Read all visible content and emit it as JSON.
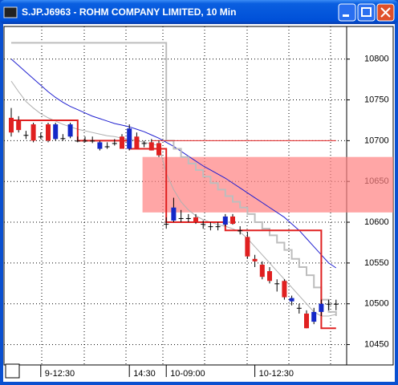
{
  "window_title": "S.JP.J6963 - ROHM COMPANY LIMITED, 10 Min",
  "chart_data": {
    "type": "candlestick",
    "categories": [
      null,
      null,
      null,
      null,
      "9-12:30",
      null,
      null,
      null,
      null,
      null,
      null,
      null,
      null,
      null,
      null,
      null,
      "14:30",
      null,
      null,
      null,
      null,
      "10-09:00",
      null,
      null,
      null,
      null,
      null,
      null,
      null,
      null,
      null,
      null,
      null,
      "10-12:30",
      null,
      null,
      null,
      null,
      null,
      null,
      null,
      null,
      null,
      null,
      null
    ],
    "open": [
      10728,
      10725,
      10707,
      10720,
      10705,
      10720,
      10702,
      10703,
      10705,
      10700,
      10700,
      10700,
      10690,
      10693,
      10697,
      10705,
      10690,
      10705,
      10697,
      10698,
      10697,
      10598,
      10602,
      10605,
      10605,
      10606,
      10598,
      10595,
      10595,
      10597,
      10607,
      10590,
      10582,
      10555,
      10548,
      10540,
      10525,
      10528,
      10503,
      10495,
      10488,
      10478,
      10490,
      10500,
      10500
    ],
    "high": [
      10740,
      10730,
      10712,
      10722,
      10710,
      10722,
      10722,
      10708,
      10722,
      10705,
      10705,
      10705,
      10700,
      10698,
      10702,
      10708,
      10720,
      10710,
      10700,
      10702,
      10700,
      10606,
      10630,
      10615,
      10610,
      10610,
      10602,
      10600,
      10600,
      10610,
      10610,
      10595,
      10588,
      10560,
      10552,
      10545,
      10530,
      10530,
      10510,
      10500,
      10492,
      10495,
      10505,
      10505,
      10505
    ],
    "low": [
      10705,
      10710,
      10702,
      10698,
      10702,
      10698,
      10700,
      10700,
      10703,
      10698,
      10698,
      10697,
      10688,
      10690,
      10694,
      10690,
      10688,
      10690,
      10692,
      10688,
      10680,
      10592,
      10600,
      10600,
      10600,
      10598,
      10592,
      10590,
      10590,
      10595,
      10597,
      10585,
      10555,
      10545,
      10530,
      10525,
      10515,
      10505,
      10498,
      10488,
      10470,
      10475,
      10485,
      10492,
      10492
    ],
    "close": [
      10710,
      10713,
      10707,
      10700,
      10705,
      10700,
      10720,
      10703,
      10720,
      10700,
      10700,
      10700,
      10698,
      10693,
      10697,
      10690,
      10715,
      10690,
      10697,
      10688,
      10682,
      10598,
      10618,
      10605,
      10605,
      10600,
      10598,
      10595,
      10595,
      10607,
      10598,
      10590,
      10558,
      10552,
      10533,
      10528,
      10525,
      10508,
      10507,
      10495,
      10470,
      10490,
      10500,
      10500,
      10500
    ],
    "up_color": "#1428c8",
    "down_color": "#e02020",
    "flat_color": "#000000",
    "series": [
      {
        "color": "#2020d0",
        "width": 1,
        "values": [
          10800,
          10792,
          10784,
          10776,
          10768,
          10760,
          10753,
          10747,
          10742,
          10738,
          10734,
          10730,
          10727,
          10724,
          10721,
          10719,
          10717,
          10714,
          10711,
          10707,
          10703,
          10698,
          10693,
          10687,
          10681,
          10675,
          10669,
          10664,
          10659,
          10654,
          10648,
          10642,
          10636,
          10630,
          10624,
          10618,
          10612,
          10606,
          10598,
          10590,
          10580,
          10570,
          10560,
          10550,
          10544
        ]
      },
      {
        "color": "#bdbdbd",
        "width": 2,
        "step": true,
        "values": [
          10820,
          10820,
          10820,
          10820,
          10820,
          10820,
          10820,
          10820,
          10820,
          10820,
          10820,
          10820,
          10820,
          10820,
          10820,
          10820,
          10820,
          10820,
          10820,
          10820,
          10820,
          10700,
          10690,
          10680,
          10672,
          10664,
          10656,
          10648,
          10640,
          10632,
          10625,
          10618,
          10610,
          10600,
          10592,
          10584,
          10575,
          10566,
          10555,
          10545,
          10535,
          10520,
          10505,
          10490,
          10485
        ]
      },
      {
        "color": "#b0b0b0",
        "width": 1,
        "values": [
          10773,
          10760,
          10748,
          10740,
          10733,
          10728,
          10724,
          10720,
          10717,
          10714,
          10712,
          10710,
          10708,
          10706,
          10705,
          10703,
          10702,
          10700,
          10698,
          10696,
          10694,
          10660,
          10640,
          10625,
          10615,
          10608,
          10603,
          10600,
          10597,
          10595,
          10592,
          10588,
          10580,
          10570,
          10560,
          10550,
          10540,
          10530,
          10520,
          10510,
          10500,
          10490,
          10485,
          10485,
          10487
        ]
      },
      {
        "color": "#e02020",
        "width": 1,
        "values": [
          null,
          null,
          null,
          null,
          null,
          null,
          null,
          null,
          null,
          null,
          null,
          null,
          null,
          null,
          null,
          null,
          null,
          null,
          null,
          10700,
          10700,
          10700,
          10700,
          10700,
          10700,
          10700,
          10700,
          10700,
          10700,
          10700,
          10700,
          10700,
          10700,
          10700,
          10700,
          10700,
          10700,
          10700,
          10700,
          10700,
          10700,
          10700,
          10700,
          10700,
          10700
        ]
      },
      {
        "color": "#e02020",
        "width": 2,
        "step": true,
        "values": [
          10725,
          10725,
          10725,
          10725,
          10725,
          10725,
          10725,
          10725,
          10725,
          10700,
          10700,
          10700,
          10700,
          10700,
          10700,
          10700,
          10690,
          10690,
          10690,
          10690,
          10690,
          10600,
          10600,
          10600,
          10600,
          10600,
          10600,
          10600,
          10600,
          10590,
          10590,
          10590,
          10590,
          10590,
          10590,
          10590,
          10590,
          10590,
          10590,
          10590,
          10590,
          10590,
          10470,
          10470,
          10470
        ]
      }
    ],
    "zone": {
      "range": [
        10612,
        10680
      ],
      "from": 18,
      "color": "#ff8080"
    },
    "ylim": [
      10425,
      10840
    ],
    "yticks": [
      10450,
      10500,
      10550,
      10600,
      10650,
      10700,
      10750,
      10800
    ],
    "grid": true
  }
}
